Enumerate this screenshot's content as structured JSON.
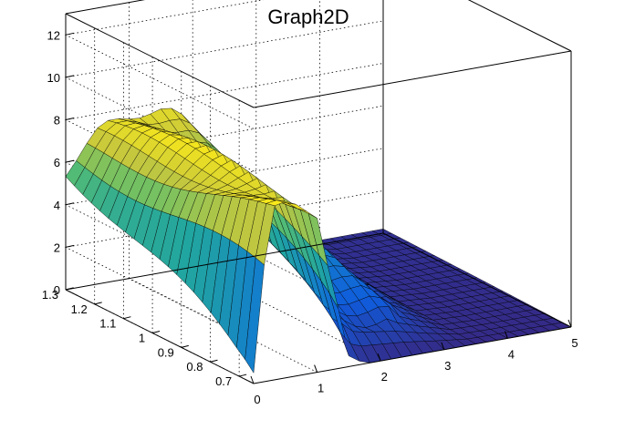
{
  "chart_data": {
    "type": "surface",
    "title": "Graph2D",
    "xlabel": "",
    "ylabel": "",
    "zlabel": "",
    "x_range": [
      0,
      5
    ],
    "y_range": [
      0.65,
      1.3
    ],
    "z_range": [
      0,
      13
    ],
    "x_ticks": [
      "0",
      "1",
      "2",
      "3",
      "4",
      "5"
    ],
    "y_ticks": [
      "0.7",
      "0.8",
      "0.9",
      "1",
      "1.1",
      "1.2",
      "1.3"
    ],
    "z_ticks": [
      "0",
      "2",
      "4",
      "6",
      "8",
      "10",
      "12"
    ],
    "grid": true,
    "colormap": "viridis-like (dark blue to yellow)",
    "colors": {
      "low": "#352a87",
      "mid": "#21a5a0",
      "high": "#f9e91a",
      "mesh": "#000000"
    },
    "surface_profile": {
      "description_points_along_x": [
        0,
        0.25,
        0.5,
        0.75,
        1.0,
        1.25,
        1.5,
        1.75,
        2.0,
        2.5,
        3.0,
        3.5,
        4.0,
        4.5,
        5.0
      ],
      "z_at_y_high": [
        5.6,
        6.2,
        7.0,
        7.6,
        7.8,
        7.8,
        7.6,
        7.2,
        6.5,
        5.0,
        2.5,
        0.4,
        0.2,
        0.2,
        0.2
      ],
      "z_at_y_low": [
        0.5,
        7.8,
        8.0,
        8.0,
        7.6,
        4.0,
        0.5,
        0.0,
        0.0,
        0.0,
        0.0,
        0.0,
        0.0,
        0.0,
        0.0
      ]
    }
  }
}
